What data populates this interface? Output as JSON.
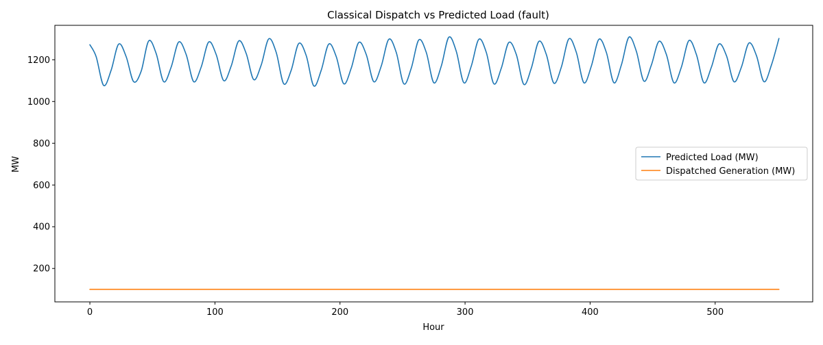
{
  "chart_data": {
    "type": "line",
    "title": "Classical Dispatch vs Predicted Load (fault)",
    "xlabel": "Hour",
    "ylabel": "MW",
    "xlim": [
      -28,
      578
    ],
    "ylim": [
      40,
      1365
    ],
    "xticks": [
      0,
      100,
      200,
      300,
      400,
      500
    ],
    "yticks": [
      200,
      400,
      600,
      800,
      1000,
      1200
    ],
    "grid": false,
    "legend_position": "center-right",
    "series": [
      {
        "name": "Predicted Load (MW)",
        "color": "#1f77b4",
        "points": [
          [
            0,
            1272
          ],
          [
            5,
            1215
          ],
          [
            11,
            1077
          ],
          [
            17,
            1150
          ],
          [
            23,
            1275
          ],
          [
            29,
            1215
          ],
          [
            35,
            1095
          ],
          [
            41,
            1145
          ],
          [
            47,
            1290
          ],
          [
            53,
            1230
          ],
          [
            59,
            1095
          ],
          [
            65,
            1165
          ],
          [
            71,
            1285
          ],
          [
            77,
            1225
          ],
          [
            83,
            1095
          ],
          [
            89,
            1165
          ],
          [
            95,
            1285
          ],
          [
            101,
            1225
          ],
          [
            107,
            1100
          ],
          [
            113,
            1170
          ],
          [
            119,
            1290
          ],
          [
            125,
            1230
          ],
          [
            131,
            1105
          ],
          [
            137,
            1175
          ],
          [
            143,
            1300
          ],
          [
            149,
            1235
          ],
          [
            155,
            1085
          ],
          [
            161,
            1150
          ],
          [
            167,
            1278
          ],
          [
            173,
            1220
          ],
          [
            179,
            1075
          ],
          [
            185,
            1150
          ],
          [
            191,
            1275
          ],
          [
            197,
            1215
          ],
          [
            203,
            1085
          ],
          [
            209,
            1160
          ],
          [
            215,
            1283
          ],
          [
            221,
            1225
          ],
          [
            227,
            1095
          ],
          [
            233,
            1170
          ],
          [
            239,
            1298
          ],
          [
            245,
            1235
          ],
          [
            251,
            1085
          ],
          [
            257,
            1160
          ],
          [
            263,
            1295
          ],
          [
            269,
            1235
          ],
          [
            275,
            1090
          ],
          [
            281,
            1170
          ],
          [
            287,
            1308
          ],
          [
            293,
            1240
          ],
          [
            299,
            1090
          ],
          [
            305,
            1170
          ],
          [
            311,
            1298
          ],
          [
            317,
            1235
          ],
          [
            323,
            1085
          ],
          [
            329,
            1160
          ],
          [
            335,
            1283
          ],
          [
            341,
            1225
          ],
          [
            347,
            1082
          ],
          [
            353,
            1160
          ],
          [
            359,
            1288
          ],
          [
            365,
            1225
          ],
          [
            371,
            1088
          ],
          [
            377,
            1165
          ],
          [
            383,
            1300
          ],
          [
            389,
            1235
          ],
          [
            395,
            1090
          ],
          [
            401,
            1170
          ],
          [
            407,
            1298
          ],
          [
            413,
            1235
          ],
          [
            419,
            1090
          ],
          [
            425,
            1175
          ],
          [
            431,
            1308
          ],
          [
            437,
            1240
          ],
          [
            443,
            1098
          ],
          [
            449,
            1175
          ],
          [
            455,
            1288
          ],
          [
            461,
            1225
          ],
          [
            467,
            1090
          ],
          [
            473,
            1165
          ],
          [
            479,
            1292
          ],
          [
            485,
            1225
          ],
          [
            491,
            1090
          ],
          [
            497,
            1165
          ],
          [
            503,
            1275
          ],
          [
            509,
            1220
          ],
          [
            515,
            1095
          ],
          [
            521,
            1165
          ],
          [
            527,
            1280
          ],
          [
            533,
            1220
          ],
          [
            539,
            1095
          ],
          [
            545,
            1175
          ],
          [
            551,
            1302
          ]
        ]
      },
      {
        "name": "Dispatched Generation (MW)",
        "color": "#ff7f0e",
        "points": [
          [
            0,
            100
          ],
          [
            551,
            100
          ]
        ]
      }
    ]
  }
}
